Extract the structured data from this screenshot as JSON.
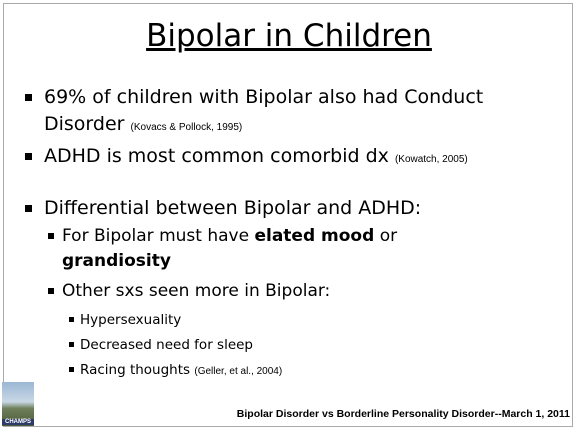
{
  "title": "Bipolar in Children",
  "bullets": [
    {
      "text": "69% of children with Bipolar also had Conduct Disorder",
      "citation": "(Kovacs & Pollock, 1995)"
    },
    {
      "text": "ADHD is most common comorbid dx",
      "citation": "(Kowatch, 2005)"
    },
    {
      "text": "Differential between Bipolar and ADHD:",
      "sub": [
        {
          "parts": [
            "For Bipolar must have",
            "elated mood",
            "or",
            "grandiosity"
          ]
        },
        {
          "text": "Other sxs seen more in Bipolar:",
          "sub": [
            {
              "text": "Hypersexuality"
            },
            {
              "text": "Decreased need for sleep"
            },
            {
              "text": "Racing thoughts",
              "citation": "(Geller, et al., 2004)"
            }
          ]
        }
      ]
    }
  ],
  "footer": "Bipolar Disorder vs Borderline Personality Disorder--March 1, 2011",
  "logo": "CHAMPS"
}
